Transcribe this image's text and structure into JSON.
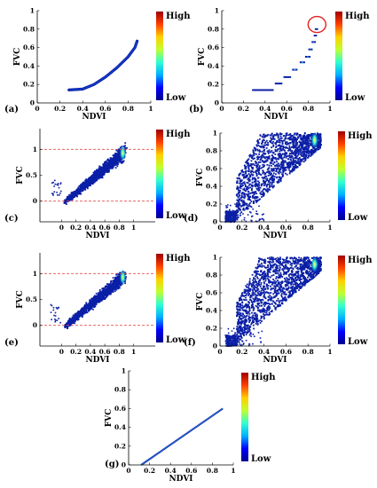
{
  "chart_data": [
    {
      "panel": "(a)",
      "type": "scatter",
      "xlabel": "NDVI",
      "ylabel": "FVC",
      "xticks": [
        "0",
        "0.2",
        "0.4",
        "0.6",
        "0.8",
        "1"
      ],
      "yticks": [
        "0",
        "0.2",
        "0.4",
        "0.6",
        "0.8",
        "1"
      ],
      "xlim": [
        0,
        1
      ],
      "ylim": [
        0,
        1
      ],
      "density_curve": {
        "x": [
          0.28,
          0.4,
          0.5,
          0.6,
          0.7,
          0.8,
          0.86,
          0.88
        ],
        "y": [
          0.14,
          0.15,
          0.2,
          0.28,
          0.38,
          0.5,
          0.6,
          0.67
        ]
      },
      "reference_lines": [],
      "colorbar": {
        "high": "High",
        "low": "Low"
      }
    },
    {
      "panel": "(b)",
      "type": "scatter",
      "xlabel": "NDVI",
      "ylabel": "FVC",
      "xticks": [
        "0",
        "0.2",
        "0.4",
        "0.6",
        "0.8",
        "1"
      ],
      "yticks": [
        "0",
        "0.2",
        "0.4",
        "0.6",
        "0.8",
        "1"
      ],
      "xlim": [
        0,
        1
      ],
      "ylim": [
        0,
        1
      ],
      "steps": [
        {
          "x0": 0.28,
          "x1": 0.48,
          "y": 0.14
        },
        {
          "x0": 0.49,
          "x1": 0.56,
          "y": 0.21
        },
        {
          "x0": 0.57,
          "x1": 0.64,
          "y": 0.28
        },
        {
          "x0": 0.65,
          "x1": 0.7,
          "y": 0.36
        },
        {
          "x0": 0.72,
          "x1": 0.77,
          "y": 0.44
        },
        {
          "x0": 0.77,
          "x1": 0.82,
          "y": 0.5
        },
        {
          "x0": 0.8,
          "x1": 0.84,
          "y": 0.58
        },
        {
          "x0": 0.83,
          "x1": 0.87,
          "y": 0.66
        },
        {
          "x0": 0.85,
          "x1": 0.88,
          "y": 0.73
        },
        {
          "x0": 0.86,
          "x1": 0.89,
          "y": 0.8
        }
      ],
      "highlight_circle": {
        "x": 0.88,
        "y": 0.85
      },
      "colorbar": {
        "high": "High",
        "low": "Low"
      }
    },
    {
      "panel": "(c)",
      "type": "scatter",
      "xlabel": "NDVI",
      "ylabel": "FVC",
      "xticks": [
        "0",
        "0.2",
        "0.4",
        "0.6",
        "0.8",
        "1"
      ],
      "yticks": [
        "0",
        "0.5",
        "1"
      ],
      "xlim": [
        -0.3,
        1.3
      ],
      "ylim": [
        -0.4,
        1.4
      ],
      "shape": "ndvi-dimidiate",
      "reference_lines": [
        0,
        1
      ],
      "colorbar": {
        "high": "High",
        "low": "Low"
      }
    },
    {
      "panel": "(d)",
      "type": "scatter",
      "xlabel": "NDVI",
      "ylabel": "FVC",
      "xticks": [
        "0",
        "0.2",
        "0.4",
        "0.6",
        "0.8",
        "1"
      ],
      "yticks": [
        "0",
        "0.2",
        "0.4",
        "0.6",
        "0.8",
        "1"
      ],
      "xlim": [
        0,
        1
      ],
      "ylim": [
        0,
        1
      ],
      "shape": "ndvi-broad",
      "reference_lines": [],
      "colorbar": {
        "high": "High",
        "low": "Low"
      }
    },
    {
      "panel": "(e)",
      "type": "scatter",
      "xlabel": "NDVI",
      "ylabel": "FVC",
      "xticks": [
        "0",
        "0.2",
        "0.4",
        "0.6",
        "0.8",
        "1"
      ],
      "yticks": [
        "0",
        "0.5",
        "1"
      ],
      "xlim": [
        -0.3,
        1.3
      ],
      "ylim": [
        -0.4,
        1.4
      ],
      "shape": "ndvi-dimidiate",
      "reference_lines": [
        0,
        1
      ],
      "colorbar": {
        "high": "High",
        "low": "Low"
      }
    },
    {
      "panel": "(f)",
      "type": "scatter",
      "xlabel": "NDVI",
      "ylabel": "FVC",
      "xticks": [
        "0",
        "0.2",
        "0.4",
        "0.6",
        "0.8",
        "1"
      ],
      "yticks": [
        "0",
        "0.2",
        "0.4",
        "0.6",
        "0.8",
        "1"
      ],
      "xlim": [
        0,
        1
      ],
      "ylim": [
        0,
        1
      ],
      "shape": "ndvi-broad",
      "reference_lines": [],
      "colorbar": {
        "high": "High",
        "low": "Low"
      }
    },
    {
      "panel": "(g)",
      "type": "line",
      "xlabel": "NDVI",
      "ylabel": "FVC",
      "xticks": [
        "0",
        "0.2",
        "0.4",
        "0.6",
        "0.8",
        "1"
      ],
      "yticks": [
        "0",
        "0.2",
        "0.4",
        "0.6",
        "0.8",
        "1"
      ],
      "xlim": [
        0,
        1
      ],
      "ylim": [
        0,
        1
      ],
      "x": [
        0.12,
        0.9
      ],
      "y": [
        0,
        0.6
      ],
      "reference_lines": [],
      "colorbar": {
        "high": "High",
        "low": "Low"
      }
    }
  ],
  "colors": {
    "point": "#0a1fa6",
    "reference_line": "#e05050",
    "highlight": "#e02020",
    "colormap": [
      "#00008f",
      "#0000ff",
      "#00b0ff",
      "#30ffd0",
      "#c0ff30",
      "#ffd000",
      "#ff4000",
      "#a00000"
    ]
  }
}
